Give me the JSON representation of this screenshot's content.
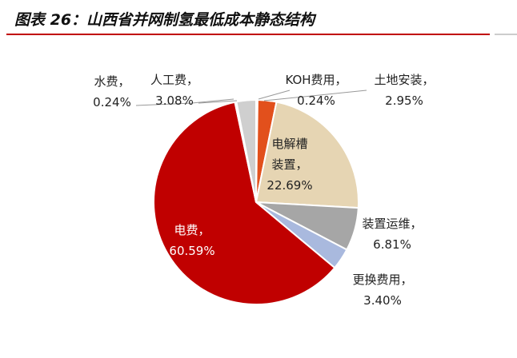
{
  "chart_data": {
    "type": "pie",
    "title": "图表 26：山西省并网制氢最低成本静态结构",
    "categories": [
      "KOH费用，",
      "土地安装，",
      "电解槽装置，",
      "装置运维，",
      "更换费用，",
      "电费，",
      "水费，",
      "人工费，"
    ],
    "values": [
      0.24,
      2.95,
      22.69,
      6.81,
      3.4,
      60.59,
      0.24,
      3.08
    ],
    "value_labels": [
      "0.24%",
      "2.95%",
      "22.69%",
      "6.81%",
      "3.40%",
      "60.59%",
      "0.24%",
      "3.08%"
    ],
    "colors": [
      "#7f7f7f",
      "#e2501c",
      "#e6d5b3",
      "#a6a6a6",
      "#a9b9de",
      "#c00000",
      "#d9d9d9",
      "#cfcfcf"
    ]
  }
}
